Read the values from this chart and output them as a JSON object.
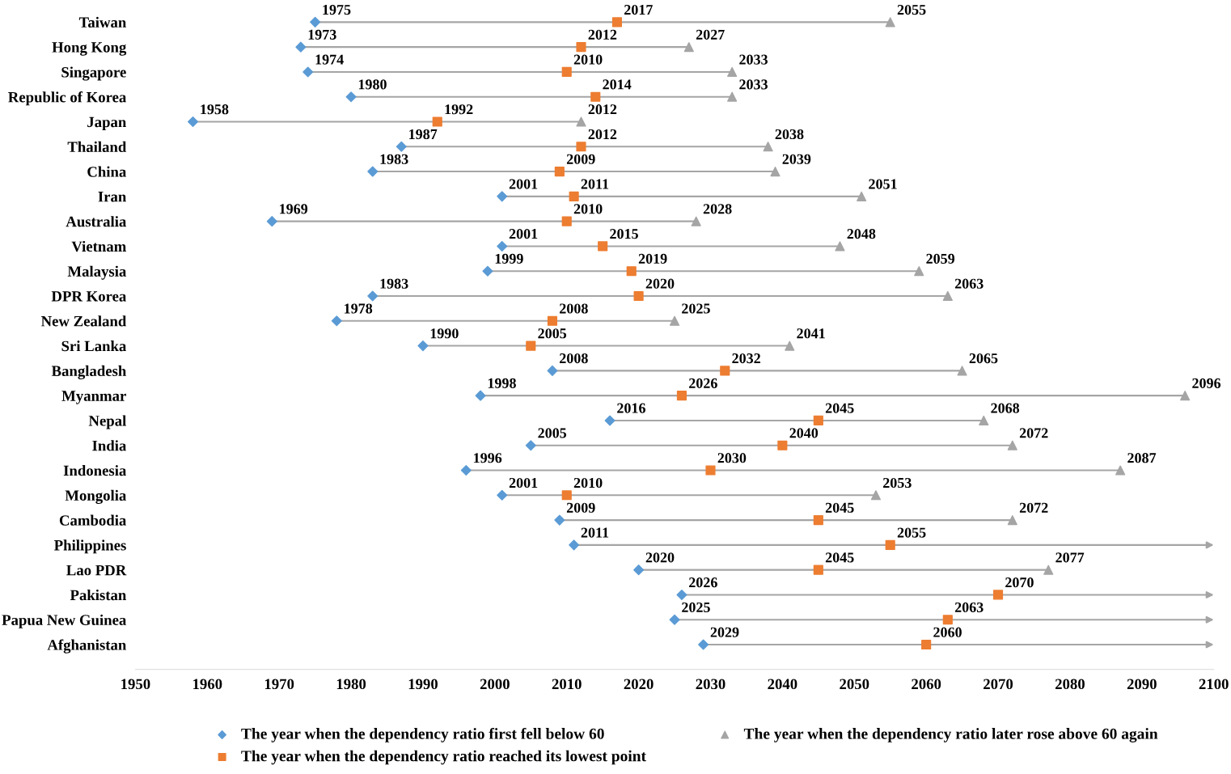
{
  "chart_data": {
    "type": "scatter",
    "orientation": "horizontal",
    "categories": [
      "Taiwan",
      "Hong Kong",
      "Singapore",
      "Republic of Korea",
      "Japan",
      "Thailand",
      "China",
      "Iran",
      "Australia",
      "Vietnam",
      "Malaysia",
      "DPR Korea",
      "New Zealand",
      "Sri Lanka",
      "Bangladesh",
      "Myanmar",
      "Nepal",
      "India",
      "Indonesia",
      "Mongolia",
      "Cambodia",
      "Philippines",
      "Lao PDR",
      "Pakistan",
      "Papua New Guinea",
      "Afghanistan"
    ],
    "series": [
      {
        "name": "The year when the dependency ratio first fell below 60",
        "color": "#5b9bd5",
        "marker": "diamond",
        "values": [
          1975,
          1973,
          1974,
          1980,
          1958,
          1987,
          1983,
          2001,
          1969,
          2001,
          1999,
          1983,
          1978,
          1990,
          2008,
          1998,
          2016,
          2005,
          1996,
          2001,
          2009,
          2011,
          2020,
          2026,
          2025,
          2029
        ]
      },
      {
        "name": "The year when the dependency ratio reached its lowest point",
        "color": "#ed7d31",
        "marker": "square",
        "values": [
          2017,
          2012,
          2010,
          2014,
          1992,
          2012,
          2009,
          2011,
          2010,
          2015,
          2019,
          2020,
          2008,
          2005,
          2032,
          2026,
          2045,
          2040,
          2030,
          2010,
          2045,
          2055,
          2045,
          2070,
          2063,
          2060
        ]
      },
      {
        "name": "The year when the dependency ratio later rose above 60 again",
        "color": "#a5a5a5",
        "marker": "triangle",
        "values": [
          2055,
          2027,
          2033,
          2033,
          2012,
          2038,
          2039,
          2051,
          2028,
          2048,
          2059,
          2063,
          2025,
          2041,
          2065,
          2096,
          2068,
          2072,
          2087,
          2053,
          2072,
          null,
          2077,
          null,
          null,
          null
        ]
      }
    ],
    "xlim": [
      1950,
      2100
    ],
    "xticks": [
      1950,
      1960,
      1970,
      1980,
      1990,
      2000,
      2010,
      2020,
      2030,
      2040,
      2050,
      2060,
      2070,
      2080,
      2090,
      2100
    ],
    "data_labels": true,
    "legend": "bottom",
    "grid": false
  }
}
